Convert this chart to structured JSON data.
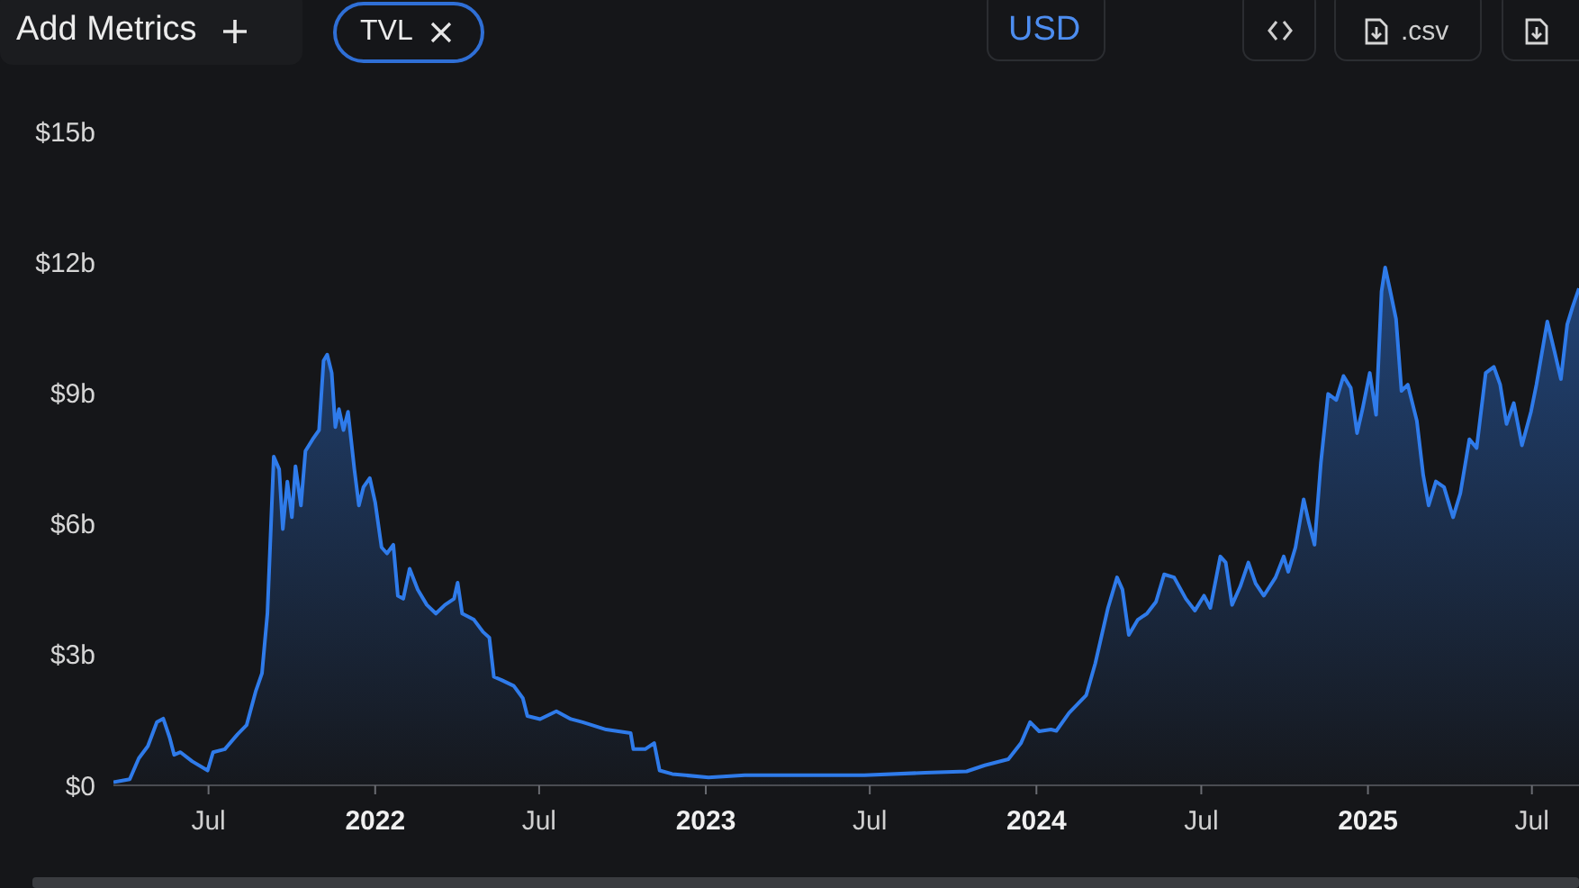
{
  "chart_data": {
    "type": "area",
    "annotations": [
      "Add Metrics",
      "TVL",
      "USD",
      ".csv"
    ],
    "color": "#2f7bea",
    "x": [
      "2021-03-18",
      "2021-04-05",
      "2021-04-15",
      "2021-04-25",
      "2021-05-05",
      "2021-05-12",
      "2021-05-19",
      "2021-05-24",
      "2021-05-31",
      "2021-06-13",
      "2021-06-30",
      "2021-07-06",
      "2021-07-19",
      "2021-08-02",
      "2021-08-12",
      "2021-08-22",
      "2021-08-29",
      "2021-09-04",
      "2021-09-11",
      "2021-09-17",
      "2021-09-21",
      "2021-09-26",
      "2021-10-01",
      "2021-10-05",
      "2021-10-11",
      "2021-10-16",
      "2021-10-24",
      "2021-10-31",
      "2021-11-05",
      "2021-11-09",
      "2021-11-14",
      "2021-11-18",
      "2021-11-22",
      "2021-11-27",
      "2021-12-02",
      "2021-12-09",
      "2021-12-14",
      "2021-12-19",
      "2021-12-26",
      "2022-01-01",
      "2022-01-08",
      "2022-01-14",
      "2022-01-21",
      "2022-01-26",
      "2022-02-01",
      "2022-02-08",
      "2022-02-17",
      "2022-02-27",
      "2022-03-09",
      "2022-03-19",
      "2022-03-29",
      "2022-04-02",
      "2022-04-07",
      "2022-04-20",
      "2022-04-30",
      "2022-05-07",
      "2022-05-12",
      "2022-05-20",
      "2022-06-03",
      "2022-06-13",
      "2022-06-18",
      "2022-07-02",
      "2022-07-20",
      "2022-08-05",
      "2022-08-18",
      "2022-09-13",
      "2022-10-10",
      "2022-10-13",
      "2022-10-26",
      "2022-11-05",
      "2022-11-11",
      "2022-11-25",
      "2023-01-04",
      "2023-02-13",
      "2023-04-20",
      "2023-06-25",
      "2023-08-31",
      "2023-10-16",
      "2023-11-05",
      "2023-12-01",
      "2023-12-15",
      "2023-12-25",
      "2024-01-04",
      "2024-01-17",
      "2024-01-23",
      "2024-02-06",
      "2024-02-25",
      "2024-03-06",
      "2024-03-20",
      "2024-03-30",
      "2024-04-05",
      "2024-04-12",
      "2024-04-22",
      "2024-05-02",
      "2024-05-12",
      "2024-05-21",
      "2024-06-01",
      "2024-06-14",
      "2024-06-24",
      "2024-07-04",
      "2024-07-11",
      "2024-07-22",
      "2024-07-28",
      "2024-08-04",
      "2024-08-13",
      "2024-08-22",
      "2024-08-30",
      "2024-09-08",
      "2024-09-21",
      "2024-09-30",
      "2024-10-05",
      "2024-10-13",
      "2024-10-22",
      "2024-10-28",
      "2024-11-03",
      "2024-11-10",
      "2024-11-18",
      "2024-11-27",
      "2024-12-05",
      "2024-12-13",
      "2024-12-20",
      "2024-12-26",
      "2025-01-03",
      "2025-01-10",
      "2025-01-16",
      "2025-01-20",
      "2025-01-25",
      "2025-02-01",
      "2025-02-07",
      "2025-02-14",
      "2025-02-24",
      "2025-03-03",
      "2025-03-09",
      "2025-03-17",
      "2025-03-26",
      "2025-04-05",
      "2025-04-13",
      "2025-04-23",
      "2025-05-01",
      "2025-05-11",
      "2025-05-20",
      "2025-05-27",
      "2025-06-03",
      "2025-06-11",
      "2025-06-20",
      "2025-06-30",
      "2025-07-06",
      "2025-07-18",
      "2025-07-26",
      "2025-08-02",
      "2025-08-09",
      "2025-08-15",
      "2025-08-22"
    ],
    "values": [
      0.07,
      0.14,
      0.62,
      0.9,
      1.45,
      1.53,
      1.1,
      0.7,
      0.76,
      0.55,
      0.34,
      0.76,
      0.83,
      1.17,
      1.38,
      2.15,
      2.57,
      3.94,
      7.54,
      7.25,
      5.88,
      6.97,
      6.15,
      7.32,
      6.42,
      7.67,
      7.94,
      8.15,
      9.74,
      9.88,
      9.46,
      8.22,
      8.63,
      8.15,
      8.57,
      7.25,
      6.42,
      6.84,
      7.05,
      6.49,
      5.46,
      5.32,
      5.52,
      4.35,
      4.28,
      4.97,
      4.49,
      4.14,
      3.94,
      4.14,
      4.28,
      4.65,
      3.94,
      3.8,
      3.52,
      3.39,
      2.49,
      2.42,
      2.28,
      2.0,
      1.59,
      1.52,
      1.7,
      1.52,
      1.45,
      1.28,
      1.2,
      0.83,
      0.83,
      0.97,
      0.34,
      0.26,
      0.18,
      0.23,
      0.23,
      0.23,
      0.29,
      0.32,
      0.46,
      0.6,
      0.97,
      1.45,
      1.24,
      1.28,
      1.25,
      1.66,
      2.07,
      2.8,
      4.07,
      4.77,
      4.49,
      3.45,
      3.8,
      3.94,
      4.21,
      4.84,
      4.77,
      4.28,
      4.01,
      4.35,
      4.07,
      5.25,
      5.11,
      4.14,
      4.56,
      5.11,
      4.63,
      4.35,
      4.77,
      5.25,
      4.9,
      5.46,
      6.56,
      6.01,
      5.52,
      7.39,
      8.98,
      8.84,
      9.39,
      9.12,
      8.08,
      8.63,
      9.46,
      8.5,
      11.33,
      11.88,
      11.4,
      10.7,
      9.05,
      9.19,
      8.36,
      7.12,
      6.42,
      6.97,
      6.84,
      6.15,
      6.7,
      7.94,
      7.74,
      9.46,
      9.6,
      9.19,
      8.29,
      8.77,
      7.8,
      8.57,
      9.19,
      10.64,
      9.95,
      9.32,
      10.57,
      10.98,
      11.4
    ],
    "xlim": [
      "2021-03-18",
      "2025-08-22"
    ],
    "xticks": [
      {
        "value": "2021-07-01",
        "label": "Jul"
      },
      {
        "value": "2022-01-01",
        "label": "2022"
      },
      {
        "value": "2022-07-01",
        "label": "Jul"
      },
      {
        "value": "2023-01-01",
        "label": "2023"
      },
      {
        "value": "2023-07-01",
        "label": "Jul"
      },
      {
        "value": "2024-01-01",
        "label": "2024"
      },
      {
        "value": "2024-07-01",
        "label": "Jul"
      },
      {
        "value": "2025-01-01",
        "label": "2025"
      },
      {
        "value": "2025-07-01",
        "label": "Jul"
      }
    ],
    "ylim": [
      0,
      15
    ],
    "yticks": [
      {
        "value": 0,
        "label": "$0"
      },
      {
        "value": 3,
        "label": "$3b"
      },
      {
        "value": 6,
        "label": "$6b"
      },
      {
        "value": 9,
        "label": "$9b"
      },
      {
        "value": 12,
        "label": "$12b"
      },
      {
        "value": 15,
        "label": "$15b"
      }
    ]
  }
}
